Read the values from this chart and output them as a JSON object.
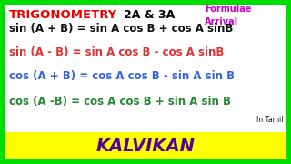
{
  "bg_color": "#ffffff",
  "border_color": "#00dd00",
  "title_trig": "TRIGONOMETRY",
  "title_2a3a": "2A & 3A",
  "title_formulae": "Formulae\nArrival",
  "title_trig_color": "#ee0000",
  "title_2a3a_color": "#000000",
  "title_formulae_color": "#cc00cc",
  "formula1": "sin (A + B) = sin A cos B + cos A sinB",
  "formula2": "sin (A - B) = sin A cos B - cos A sinB",
  "formula3": "cos (A + B) = cos A cos B - sin A sin B",
  "formula4": "cos (A -B) = cos A cos B + sin A sin B",
  "formula1_color": "#111111",
  "formula2_color": "#dd3333",
  "formula3_color": "#3366dd",
  "formula4_color": "#228833",
  "in_tamil": "In Tamil",
  "in_tamil_color": "#111111",
  "bottom_text": "KALVIKAN",
  "bottom_bg": "#ffff00",
  "bottom_text_color": "#550099",
  "bottom_border_color": "#00dd00"
}
